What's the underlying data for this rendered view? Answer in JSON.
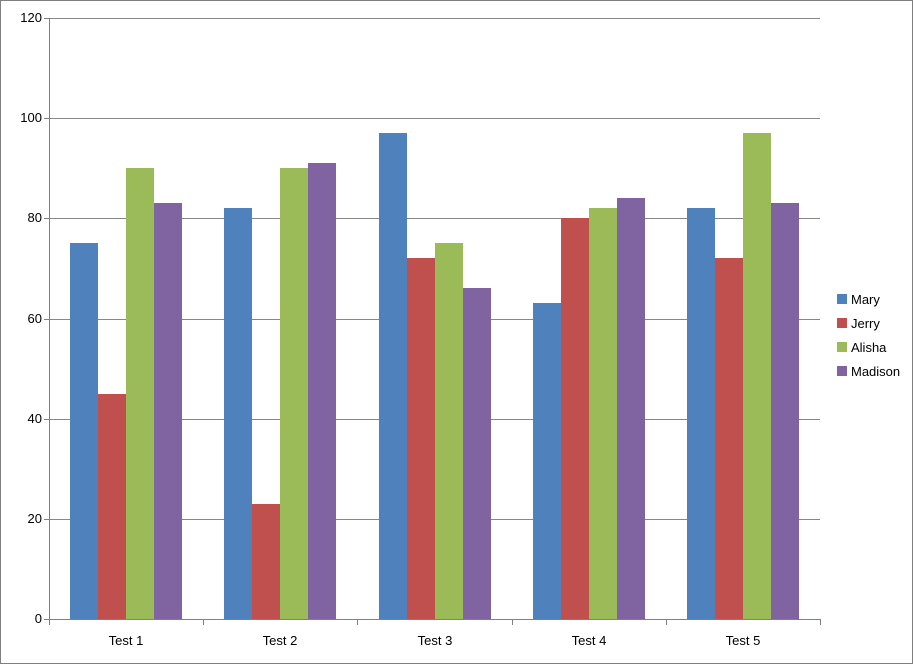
{
  "chart_data": {
    "type": "bar",
    "categories": [
      "Test 1",
      "Test 2",
      "Test 3",
      "Test 4",
      "Test 5"
    ],
    "series": [
      {
        "name": "Mary",
        "color": "#4F81BD",
        "values": [
          75,
          82,
          97,
          63,
          82
        ]
      },
      {
        "name": "Jerry",
        "color": "#C0504D",
        "values": [
          45,
          23,
          72,
          80,
          72
        ]
      },
      {
        "name": "Alisha",
        "color": "#9BBB59",
        "values": [
          90,
          90,
          75,
          82,
          97
        ]
      },
      {
        "name": "Madison",
        "color": "#8064A2",
        "values": [
          83,
          91,
          66,
          84,
          83
        ]
      }
    ],
    "ylim": [
      0,
      120
    ],
    "yticks": [
      0,
      20,
      40,
      60,
      80,
      100,
      120
    ],
    "grid": true,
    "legend_position": "right",
    "colors": {
      "gridline": "#878787",
      "axis": "#808080",
      "text": "#000000",
      "background": "#ffffff"
    }
  }
}
